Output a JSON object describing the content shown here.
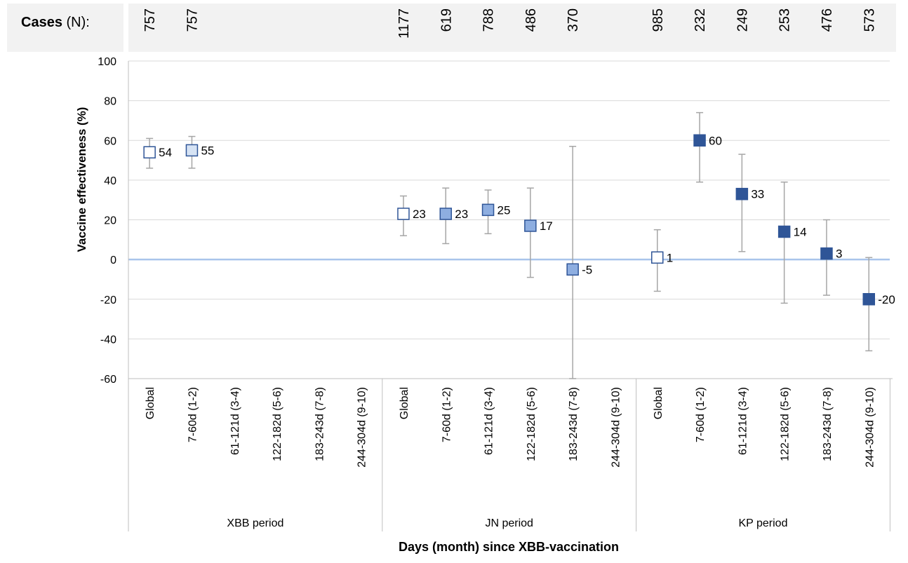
{
  "chart_data": {
    "type": "scatter",
    "title": "",
    "xlabel": "Days (month) since XBB-vaccination",
    "ylabel": "Vaccine effectiveness (%)",
    "ylim": [
      -60,
      100
    ],
    "yticks": [
      -60,
      -40,
      -20,
      0,
      20,
      40,
      60,
      80,
      100
    ],
    "grid": true,
    "legend": "none",
    "cases_label": {
      "bold": "Cases",
      "rest": " (N):"
    },
    "groups": [
      {
        "name": "XBB period",
        "categories": [
          "Global",
          "7-60d (1-2)",
          "61-121d (3-4)",
          "122-182d (5-6)",
          "183-243d (7-8)",
          "244-304d (9-10)"
        ],
        "cases": [
          "757",
          "757",
          "",
          "",
          "",
          ""
        ],
        "values": [
          54,
          55,
          null,
          null,
          null,
          null
        ],
        "ci_low": [
          46,
          46,
          null,
          null,
          null,
          null
        ],
        "ci_high": [
          61,
          62,
          null,
          null,
          null,
          null
        ],
        "labels": [
          "54",
          "55",
          "",
          "",
          "",
          ""
        ],
        "colors": [
          "#ffffff",
          "#d6e3f4",
          "",
          "",
          "",
          ""
        ]
      },
      {
        "name": "JN period",
        "categories": [
          "Global",
          "7-60d (1-2)",
          "61-121d (3-4)",
          "122-182d (5-6)",
          "183-243d (7-8)",
          "244-304d (9-10)"
        ],
        "cases": [
          "1177",
          "619",
          "788",
          "486",
          "370",
          ""
        ],
        "values": [
          23,
          23,
          25,
          17,
          -5,
          null
        ],
        "ci_low": [
          12,
          8,
          13,
          -9,
          -60,
          null
        ],
        "ci_high": [
          32,
          36,
          35,
          36,
          57,
          null
        ],
        "labels": [
          "23",
          "23",
          "25",
          "17",
          "-5",
          ""
        ],
        "colors": [
          "#ffffff",
          "#8eaee0",
          "#8eaee0",
          "#8eaee0",
          "#8eaee0",
          ""
        ]
      },
      {
        "name": "KP period",
        "categories": [
          "Global",
          "7-60d (1-2)",
          "61-121d (3-4)",
          "122-182d (5-6)",
          "183-243d (7-8)",
          "244-304d (9-10)"
        ],
        "cases": [
          "985",
          "232",
          "249",
          "253",
          "476",
          "573"
        ],
        "values": [
          1,
          60,
          33,
          14,
          3,
          -20
        ],
        "ci_low": [
          -16,
          39,
          4,
          -22,
          -18,
          -46
        ],
        "ci_high": [
          15,
          74,
          53,
          39,
          20,
          1
        ],
        "labels": [
          "1",
          "60",
          "33",
          "14",
          "3",
          "-20"
        ],
        "colors": [
          "#ffffff",
          "#2f5597",
          "#2f5597",
          "#2f5597",
          "#2f5597",
          "#2f5597"
        ]
      }
    ],
    "colors": {
      "marker_border": "#2f5597",
      "error_bar": "#a6a6a6",
      "zero_line": "#a9c4eb",
      "gridline": "#d9d9d9",
      "cases_band": "#f2f2f2"
    }
  }
}
